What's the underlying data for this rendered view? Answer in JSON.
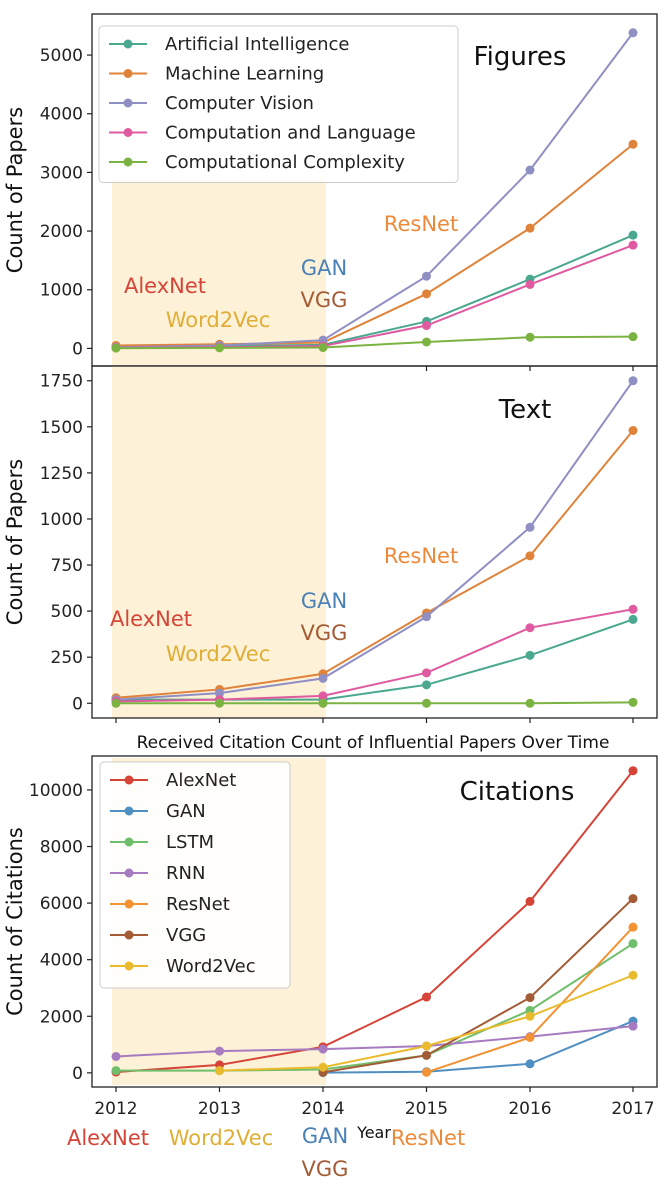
{
  "chart_data": [
    {
      "type": "line",
      "title": "Figures",
      "ylabel": "Count of Papers",
      "x": [
        2012,
        2013,
        2014,
        2015,
        2016,
        2017
      ],
      "ylim": [
        -300,
        5700
      ],
      "yticks": [
        0,
        1000,
        2000,
        3000,
        4000,
        5000
      ],
      "legend": "top-left",
      "series": [
        {
          "name": "Artificial Intelligence",
          "color": "#4aa88f",
          "values": [
            30,
            40,
            60,
            460,
            1180,
            1930
          ]
        },
        {
          "name": "Machine Learning",
          "color": "#e0833a",
          "values": [
            50,
            70,
            100,
            930,
            2050,
            3480
          ]
        },
        {
          "name": "Computer Vision",
          "color": "#8f8fc4",
          "values": [
            20,
            50,
            140,
            1230,
            3040,
            5380
          ]
        },
        {
          "name": "Computation and Language",
          "color": "#df5aa0",
          "values": [
            10,
            20,
            40,
            390,
            1090,
            1760
          ]
        },
        {
          "name": "Computational Complexity",
          "color": "#7bb342",
          "values": [
            5,
            10,
            15,
            110,
            190,
            200
          ]
        }
      ],
      "annotations": [
        {
          "text": "AlexNet",
          "color": "#d64437"
        },
        {
          "text": "Word2Vec",
          "color": "#e0ae34"
        },
        {
          "text": "GAN",
          "color": "#4a82b8"
        },
        {
          "text": "VGG",
          "color": "#a35c35"
        },
        {
          "text": "ResNet",
          "color": "#ec8a3a"
        }
      ]
    },
    {
      "type": "line",
      "title": "Text",
      "ylabel": "Count of Papers",
      "x": [
        2012,
        2013,
        2014,
        2015,
        2016,
        2017
      ],
      "ylim": [
        -80,
        1830
      ],
      "yticks": [
        0,
        250,
        500,
        750,
        1000,
        1250,
        1500,
        1750
      ],
      "ytick_labels": [
        "0",
        "250",
        "500",
        "750",
        "1000",
        "1250",
        "1500",
        "1750"
      ],
      "series": [
        {
          "name": "Artificial Intelligence",
          "color": "#4aa88f",
          "values": [
            20,
            20,
            20,
            100,
            260,
            455
          ]
        },
        {
          "name": "Machine Learning",
          "color": "#e0833a",
          "values": [
            30,
            75,
            160,
            490,
            800,
            1480
          ]
        },
        {
          "name": "Computer Vision",
          "color": "#8f8fc4",
          "values": [
            20,
            55,
            135,
            470,
            955,
            1750
          ]
        },
        {
          "name": "Computation and Language",
          "color": "#df5aa0",
          "values": [
            10,
            20,
            40,
            165,
            410,
            510
          ]
        },
        {
          "name": "Computational Complexity",
          "color": "#7bb342",
          "values": [
            0,
            0,
            0,
            0,
            0,
            5
          ]
        }
      ],
      "annotations": [
        {
          "text": "AlexNet",
          "color": "#d64437"
        },
        {
          "text": "Word2Vec",
          "color": "#e0ae34"
        },
        {
          "text": "GAN",
          "color": "#4a82b8"
        },
        {
          "text": "VGG",
          "color": "#a35c35"
        },
        {
          "text": "ResNet",
          "color": "#ec8a3a"
        }
      ]
    },
    {
      "type": "line",
      "title": "Citations",
      "chart_title": "Received Citation Count of Influential Papers Over Time",
      "ylabel": "Count of Citations",
      "xlabel": "Year",
      "x": [
        2012,
        2013,
        2014,
        2015,
        2016,
        2017
      ],
      "xtick_labels": [
        "2012",
        "2013",
        "2014",
        "2015",
        "2016",
        "2017"
      ],
      "ylim": [
        -500,
        11200
      ],
      "yticks": [
        0,
        2000,
        4000,
        6000,
        8000,
        10000
      ],
      "legend": "top-left",
      "series": [
        {
          "name": "AlexNet",
          "color": "#d64437",
          "values": [
            30,
            280,
            920,
            2680,
            6060,
            10680
          ]
        },
        {
          "name": "GAN",
          "color": "#4f8fc2",
          "values": [
            null,
            null,
            10,
            40,
            320,
            1830
          ]
        },
        {
          "name": "LSTM",
          "color": "#6fbe6b",
          "values": [
            80,
            80,
            120,
            620,
            2210,
            4570
          ]
        },
        {
          "name": "RNN",
          "color": "#a77bbf",
          "values": [
            580,
            770,
            840,
            950,
            1280,
            1650
          ]
        },
        {
          "name": "ResNet",
          "color": "#f39233",
          "values": [
            null,
            null,
            null,
            20,
            1250,
            5150
          ]
        },
        {
          "name": "VGG",
          "color": "#a35c35",
          "values": [
            null,
            null,
            20,
            620,
            2660,
            6160
          ]
        },
        {
          "name": "Word2Vec",
          "color": "#e9bb2c",
          "values": [
            null,
            80,
            200,
            950,
            2000,
            3450
          ]
        }
      ],
      "bottom_annotations": [
        {
          "text": "AlexNet",
          "color": "#d64437"
        },
        {
          "text": "Word2Vec",
          "color": "#e0ae34"
        },
        {
          "text": "GAN",
          "color": "#4a82b8"
        },
        {
          "text": "ResNet",
          "color": "#ec8a3a"
        },
        {
          "text": "VGG",
          "color": "#a35c35"
        }
      ]
    }
  ]
}
